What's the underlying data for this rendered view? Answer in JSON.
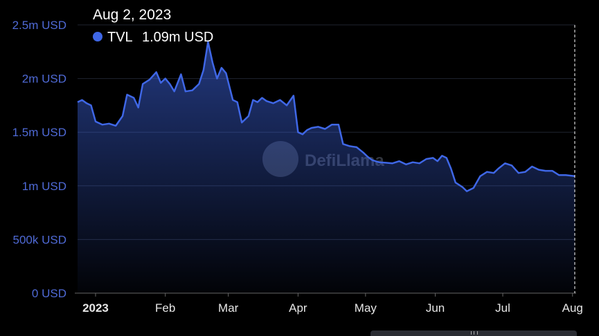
{
  "watermark": "DefiLlama",
  "colors": {
    "line": "#3f67e6",
    "background": "#000000"
  },
  "tooltip": {
    "date": "Aug 2, 2023",
    "series": "TVL",
    "value": "1.09m USD"
  },
  "chart_data": {
    "type": "area",
    "y_tick_labels": [
      "0 USD",
      "500k USD",
      "1m USD",
      "1.5m USD",
      "2m USD",
      "2.5m USD"
    ],
    "y_ticks": [
      0,
      500000,
      1000000,
      1500000,
      2000000,
      2500000
    ],
    "ylim": [
      0,
      2500000
    ],
    "x_tick_labels": [
      "2023",
      "Feb",
      "Mar",
      "Apr",
      "May",
      "Jun",
      "Jul",
      "Aug"
    ],
    "x_tick_dates": [
      "2023-01-01",
      "2023-02-01",
      "2023-03-01",
      "2023-04-01",
      "2023-05-01",
      "2023-06-01",
      "2023-07-01",
      "2023-08-01"
    ],
    "xlim": [
      "2022-12-24",
      "2023-08-02"
    ],
    "grid": true,
    "series": [
      {
        "name": "TVL",
        "points": [
          [
            "2022-12-24",
            1780000
          ],
          [
            "2022-12-26",
            1800000
          ],
          [
            "2022-12-28",
            1770000
          ],
          [
            "2022-12-30",
            1750000
          ],
          [
            "2023-01-01",
            1600000
          ],
          [
            "2023-01-04",
            1570000
          ],
          [
            "2023-01-07",
            1580000
          ],
          [
            "2023-01-10",
            1560000
          ],
          [
            "2023-01-13",
            1650000
          ],
          [
            "2023-01-15",
            1850000
          ],
          [
            "2023-01-18",
            1820000
          ],
          [
            "2023-01-20",
            1730000
          ],
          [
            "2023-01-22",
            1950000
          ],
          [
            "2023-01-25",
            1990000
          ],
          [
            "2023-01-28",
            2060000
          ],
          [
            "2023-01-30",
            1960000
          ],
          [
            "2023-02-01",
            2000000
          ],
          [
            "2023-02-03",
            1950000
          ],
          [
            "2023-02-05",
            1880000
          ],
          [
            "2023-02-08",
            2040000
          ],
          [
            "2023-02-10",
            1880000
          ],
          [
            "2023-02-13",
            1890000
          ],
          [
            "2023-02-16",
            1950000
          ],
          [
            "2023-02-18",
            2080000
          ],
          [
            "2023-02-20",
            2340000
          ],
          [
            "2023-02-22",
            2150000
          ],
          [
            "2023-02-24",
            2000000
          ],
          [
            "2023-02-26",
            2100000
          ],
          [
            "2023-02-28",
            2050000
          ],
          [
            "2023-03-03",
            1800000
          ],
          [
            "2023-03-05",
            1780000
          ],
          [
            "2023-03-07",
            1590000
          ],
          [
            "2023-03-10",
            1650000
          ],
          [
            "2023-03-12",
            1800000
          ],
          [
            "2023-03-14",
            1780000
          ],
          [
            "2023-03-16",
            1820000
          ],
          [
            "2023-03-18",
            1790000
          ],
          [
            "2023-03-21",
            1770000
          ],
          [
            "2023-03-24",
            1800000
          ],
          [
            "2023-03-27",
            1750000
          ],
          [
            "2023-03-30",
            1840000
          ],
          [
            "2023-04-01",
            1500000
          ],
          [
            "2023-04-03",
            1480000
          ],
          [
            "2023-04-05",
            1520000
          ],
          [
            "2023-04-07",
            1540000
          ],
          [
            "2023-04-10",
            1550000
          ],
          [
            "2023-04-13",
            1530000
          ],
          [
            "2023-04-16",
            1570000
          ],
          [
            "2023-04-19",
            1570000
          ],
          [
            "2023-04-21",
            1390000
          ],
          [
            "2023-04-24",
            1370000
          ],
          [
            "2023-04-27",
            1360000
          ],
          [
            "2023-04-30",
            1310000
          ],
          [
            "2023-05-02",
            1270000
          ],
          [
            "2023-05-04",
            1240000
          ],
          [
            "2023-05-07",
            1220000
          ],
          [
            "2023-05-10",
            1215000
          ],
          [
            "2023-05-13",
            1210000
          ],
          [
            "2023-05-16",
            1230000
          ],
          [
            "2023-05-19",
            1200000
          ],
          [
            "2023-05-22",
            1220000
          ],
          [
            "2023-05-25",
            1210000
          ],
          [
            "2023-05-28",
            1250000
          ],
          [
            "2023-05-31",
            1260000
          ],
          [
            "2023-06-02",
            1230000
          ],
          [
            "2023-06-04",
            1280000
          ],
          [
            "2023-06-06",
            1260000
          ],
          [
            "2023-06-08",
            1160000
          ],
          [
            "2023-06-10",
            1030000
          ],
          [
            "2023-06-13",
            990000
          ],
          [
            "2023-06-15",
            950000
          ],
          [
            "2023-06-18",
            980000
          ],
          [
            "2023-06-21",
            1090000
          ],
          [
            "2023-06-24",
            1130000
          ],
          [
            "2023-06-27",
            1120000
          ],
          [
            "2023-06-29",
            1160000
          ],
          [
            "2023-07-02",
            1210000
          ],
          [
            "2023-07-05",
            1190000
          ],
          [
            "2023-07-08",
            1120000
          ],
          [
            "2023-07-11",
            1130000
          ],
          [
            "2023-07-14",
            1180000
          ],
          [
            "2023-07-17",
            1150000
          ],
          [
            "2023-07-20",
            1140000
          ],
          [
            "2023-07-23",
            1140000
          ],
          [
            "2023-07-26",
            1100000
          ],
          [
            "2023-07-29",
            1100000
          ],
          [
            "2023-08-02",
            1090000
          ]
        ]
      }
    ]
  }
}
